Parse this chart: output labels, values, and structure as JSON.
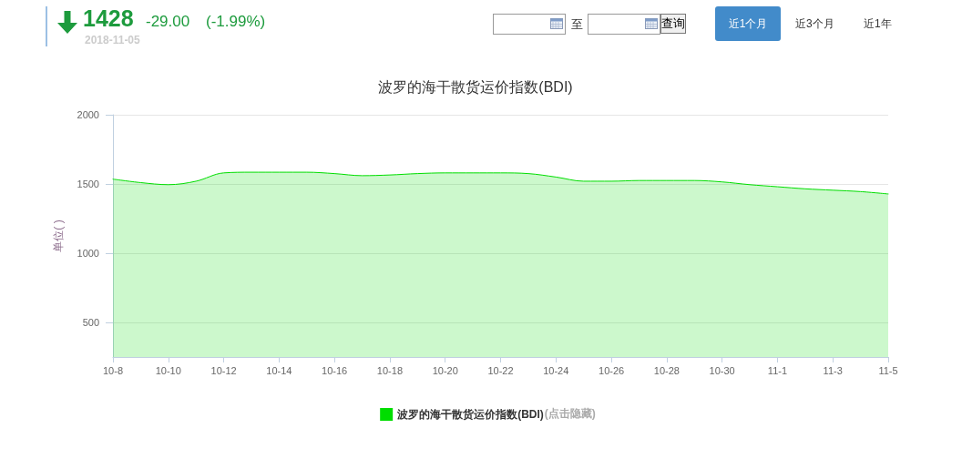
{
  "chart_data": {
    "type": "area",
    "title": "波罗的海干散货运价指数(BDI)",
    "ylabel": "单位( )",
    "categories": [
      "10-8",
      null,
      "10-10",
      null,
      "10-12",
      null,
      "10-14",
      null,
      "10-16",
      null,
      "10-18",
      null,
      "10-20",
      null,
      "10-22",
      null,
      "10-24",
      null,
      "10-26",
      null,
      "10-28",
      null,
      "10-30",
      null,
      "11-1",
      null,
      "11-3",
      null,
      "11-5"
    ],
    "series": [
      {
        "name": "波罗的海干散货运价指数(BDI)",
        "color": "#00dd00",
        "values": [
          1535,
          1510,
          1495,
          1520,
          1580,
          1585,
          1585,
          1585,
          1575,
          1560,
          1565,
          1575,
          1580,
          1580,
          1580,
          1575,
          1550,
          1520,
          1520,
          1525,
          1525,
          1525,
          1515,
          1495,
          1480,
          1465,
          1455,
          1445,
          1428
        ]
      }
    ],
    "ylim": [
      250,
      2000
    ],
    "yticks": [
      500,
      1000,
      1500,
      2000
    ],
    "grid": "y",
    "legend": "bottom",
    "marker": "none",
    "annotations": [
      "1428",
      "-29.00",
      "(-1.99%)",
      "2018-11-05",
      "至",
      "查询",
      "近1个月",
      "近3个月",
      "近1年",
      "(点击隐藏)"
    ]
  }
}
